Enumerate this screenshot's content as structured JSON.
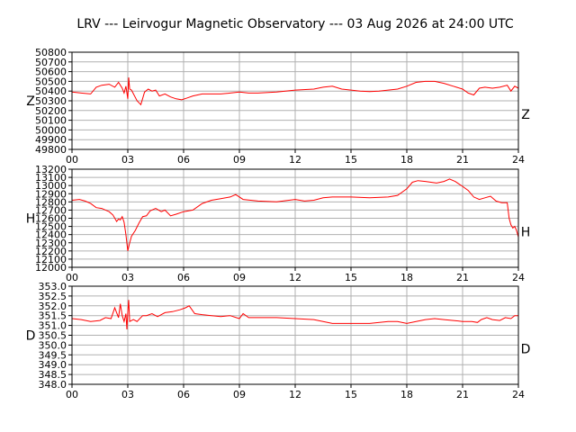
{
  "title": "LRV --- Leirvogur Magnetic Observatory --- 03 Aug 2026 at 24:00 UTC",
  "colors": {
    "trace": "#ff0000",
    "grid": "#b0b0b0",
    "axes": "#000000"
  },
  "chart_data": [
    {
      "type": "line",
      "component": "Z",
      "ylabel_left": "Z",
      "ylabel_right": "Z",
      "xlim": [
        0,
        24
      ],
      "ylim": [
        49800,
        50800
      ],
      "x_ticks": [
        "00",
        "03",
        "06",
        "09",
        "12",
        "15",
        "18",
        "21",
        "24"
      ],
      "y_ticks": [
        "49800",
        "49900",
        "50000",
        "50100",
        "50200",
        "50300",
        "50400",
        "50500",
        "50600",
        "50700",
        "50800"
      ],
      "grid": true,
      "series": [
        {
          "x": [
            0,
            0.5,
            1.0,
            1.3,
            1.6,
            2.0,
            2.3,
            2.5,
            2.7,
            2.8,
            2.9,
            3.0,
            3.05,
            3.1,
            3.2,
            3.5,
            3.7,
            3.9,
            4.1,
            4.3,
            4.5,
            4.7,
            5.0,
            5.3,
            5.6,
            5.9,
            6.2,
            6.5,
            7.0,
            7.5,
            8.0,
            8.5,
            9.0,
            9.5,
            10.0,
            11.0,
            12.0,
            13.0,
            13.5,
            14.0,
            14.5,
            15.0,
            15.5,
            16.0,
            16.5,
            17.0,
            17.5,
            18.0,
            18.5,
            19.0,
            19.5,
            20.0,
            20.5,
            21.0,
            21.3,
            21.6,
            21.9,
            22.2,
            22.6,
            23.0,
            23.4,
            23.6,
            23.8,
            24.0
          ],
          "y": [
            50390,
            50380,
            50370,
            50440,
            50460,
            50470,
            50440,
            50490,
            50430,
            50380,
            50450,
            50320,
            50540,
            50420,
            50410,
            50300,
            50260,
            50390,
            50420,
            50400,
            50410,
            50350,
            50370,
            50340,
            50320,
            50310,
            50330,
            50350,
            50370,
            50370,
            50370,
            50380,
            50390,
            50380,
            50380,
            50390,
            50410,
            50420,
            50440,
            50450,
            50420,
            50410,
            50400,
            50395,
            50400,
            50410,
            50420,
            50450,
            50490,
            50500,
            50500,
            50480,
            50450,
            50420,
            50380,
            50360,
            50430,
            50440,
            50430,
            50440,
            50460,
            50400,
            50450,
            50430
          ]
        }
      ]
    },
    {
      "type": "line",
      "component": "H",
      "ylabel_left": "H",
      "ylabel_right": "H",
      "xlim": [
        0,
        24
      ],
      "ylim": [
        12000,
        13200
      ],
      "x_ticks": [
        "00",
        "03",
        "06",
        "09",
        "12",
        "15",
        "18",
        "21",
        "24"
      ],
      "y_ticks": [
        "12000",
        "12100",
        "12200",
        "12300",
        "12400",
        "12500",
        "12600",
        "12700",
        "12800",
        "12900",
        "13000",
        "13100",
        "13200"
      ],
      "grid": true,
      "series": [
        {
          "x": [
            0,
            0.4,
            0.7,
            1.0,
            1.3,
            1.6,
            1.8,
            2.0,
            2.2,
            2.4,
            2.5,
            2.6,
            2.7,
            2.8,
            2.9,
            3.0,
            3.1,
            3.2,
            3.4,
            3.6,
            3.8,
            4.0,
            4.2,
            4.5,
            4.8,
            5.0,
            5.3,
            5.6,
            6.0,
            6.5,
            7.0,
            7.5,
            8.0,
            8.5,
            8.8,
            9.2,
            9.6,
            10.0,
            11.0,
            12.0,
            12.5,
            13.0,
            13.5,
            14.0,
            15.0,
            16.0,
            17.0,
            17.5,
            18.0,
            18.3,
            18.6,
            19.0,
            19.3,
            19.6,
            20.0,
            20.3,
            20.6,
            21.0,
            21.3,
            21.6,
            21.9,
            22.2,
            22.5,
            22.8,
            23.1,
            23.4,
            23.5,
            23.6,
            23.7,
            23.8,
            23.9,
            24.0
          ],
          "y": [
            12820,
            12830,
            12810,
            12780,
            12730,
            12720,
            12700,
            12680,
            12640,
            12560,
            12590,
            12580,
            12620,
            12550,
            12400,
            12200,
            12300,
            12380,
            12450,
            12540,
            12620,
            12630,
            12690,
            12720,
            12680,
            12700,
            12630,
            12650,
            12680,
            12700,
            12780,
            12820,
            12840,
            12860,
            12890,
            12830,
            12820,
            12810,
            12800,
            12830,
            12810,
            12820,
            12850,
            12860,
            12860,
            12850,
            12860,
            12880,
            12960,
            13040,
            13060,
            13050,
            13040,
            13030,
            13050,
            13080,
            13050,
            12990,
            12940,
            12860,
            12830,
            12850,
            12870,
            12810,
            12790,
            12790,
            12600,
            12520,
            12480,
            12500,
            12450,
            12370
          ]
        }
      ]
    },
    {
      "type": "line",
      "component": "D",
      "ylabel_left": "D",
      "ylabel_right": "D",
      "xlim": [
        0,
        24
      ],
      "ylim": [
        348.0,
        353.0
      ],
      "x_ticks": [
        "00",
        "03",
        "06",
        "09",
        "12",
        "15",
        "18",
        "21",
        "24"
      ],
      "y_ticks": [
        "348.0",
        "348.5",
        "349.0",
        "349.5",
        "350.0",
        "350.5",
        "351.0",
        "351.5",
        "352.0",
        "352.5",
        "353.0"
      ],
      "grid": true,
      "series": [
        {
          "x": [
            0,
            0.5,
            1.0,
            1.5,
            1.8,
            2.1,
            2.3,
            2.5,
            2.6,
            2.7,
            2.8,
            2.9,
            2.95,
            3.0,
            3.05,
            3.1,
            3.3,
            3.5,
            3.8,
            4.0,
            4.3,
            4.6,
            5.0,
            5.4,
            5.8,
            6.1,
            6.3,
            6.6,
            7.0,
            7.5,
            8.0,
            8.5,
            9.0,
            9.2,
            9.5,
            10.0,
            11.0,
            12.0,
            13.0,
            13.5,
            14.0,
            15.0,
            16.0,
            17.0,
            17.5,
            18.0,
            18.5,
            19.0,
            19.5,
            20.0,
            20.5,
            21.0,
            21.5,
            21.8,
            22.0,
            22.3,
            22.6,
            23.0,
            23.3,
            23.6,
            23.8,
            24.0
          ],
          "y": [
            351.35,
            351.3,
            351.2,
            351.25,
            351.4,
            351.35,
            351.9,
            351.4,
            352.1,
            351.5,
            351.2,
            351.6,
            350.8,
            351.7,
            352.3,
            351.2,
            351.3,
            351.2,
            351.5,
            351.5,
            351.6,
            351.45,
            351.65,
            351.7,
            351.8,
            351.9,
            352.0,
            351.6,
            351.55,
            351.5,
            351.45,
            351.5,
            351.35,
            351.6,
            351.4,
            351.4,
            351.4,
            351.35,
            351.3,
            351.2,
            351.1,
            351.1,
            351.1,
            351.2,
            351.2,
            351.1,
            351.2,
            351.3,
            351.35,
            351.3,
            351.25,
            351.2,
            351.2,
            351.15,
            351.3,
            351.4,
            351.3,
            351.25,
            351.4,
            351.35,
            351.5,
            351.5
          ]
        }
      ]
    }
  ]
}
